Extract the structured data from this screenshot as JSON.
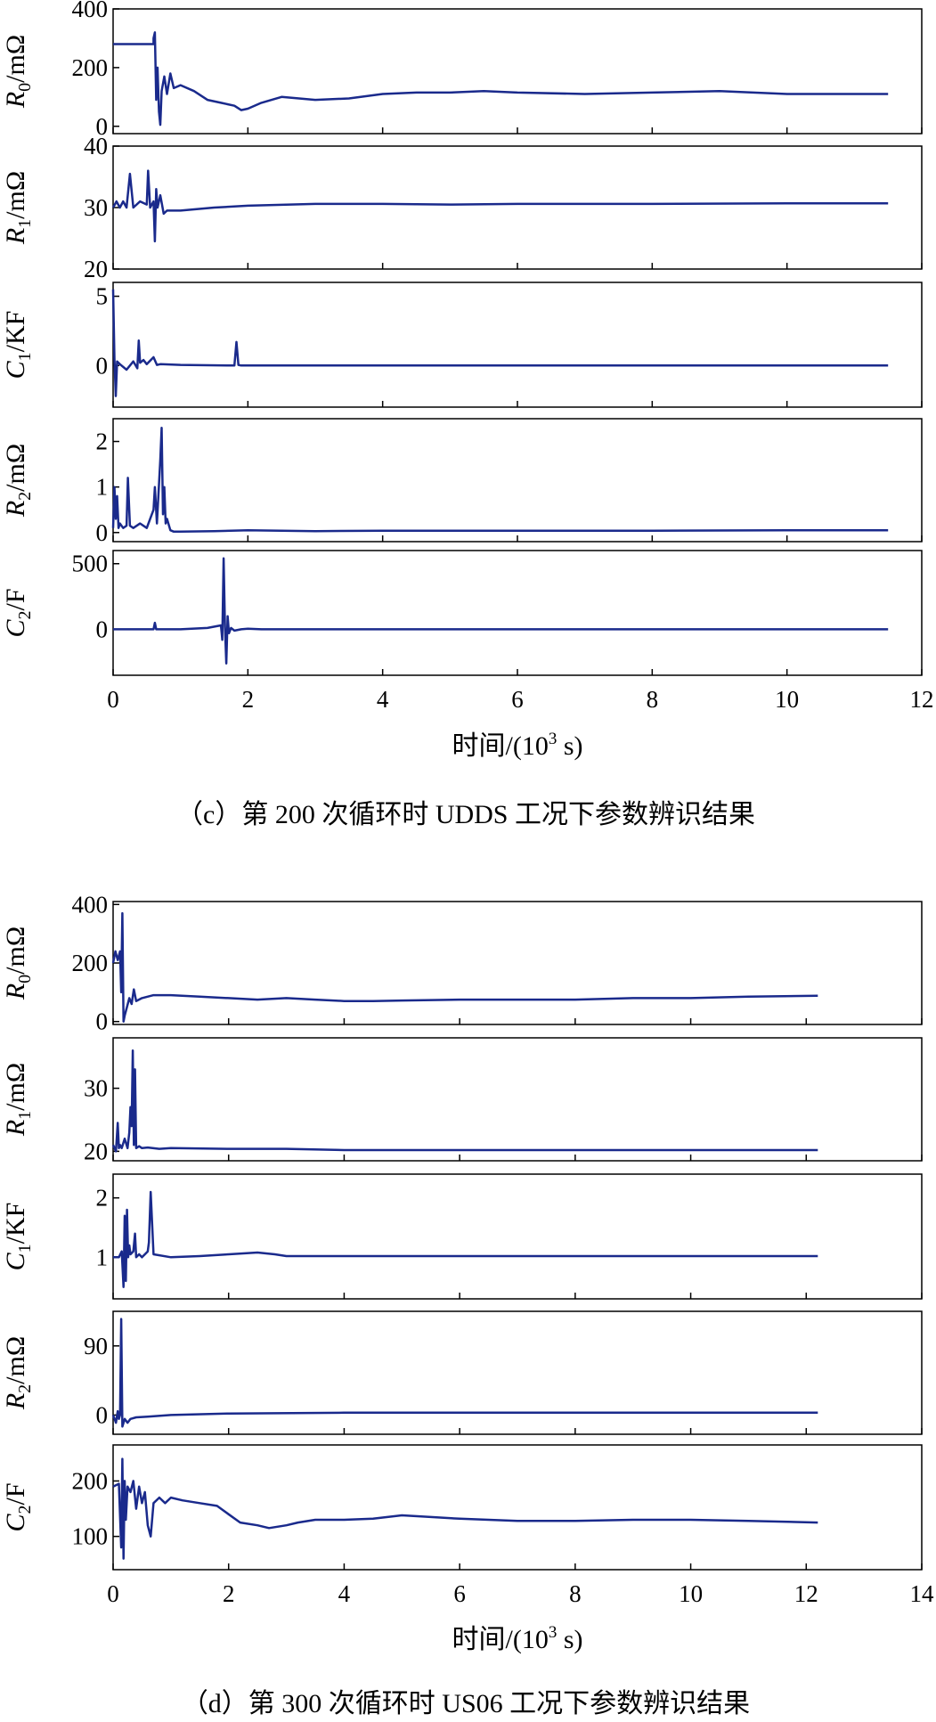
{
  "figure": {
    "series_color": "#1a2a8c",
    "panel_c_caption": "（c）第 200 次循环时 UDDS 工况下参数辨识结果",
    "panel_d_caption": "（d）第 300 次循环时 US06 工况下参数辨识结果"
  },
  "chart_data": [
    {
      "id": "c",
      "type": "line",
      "caption": "（c）第 200 次循环时 UDDS 工况下参数辨识结果",
      "xlabel": "时间/(10³ s)",
      "xlabel_main": "时间/(10",
      "xlabel_sup": "3",
      "xlabel_tail": " s)",
      "xlim": [
        0,
        12
      ],
      "xticks": [
        0,
        2,
        4,
        6,
        8,
        10,
        12
      ],
      "xtick_labels": [
        "0",
        "2",
        "4",
        "6",
        "8",
        "10",
        "12"
      ],
      "subplots": [
        {
          "ylabel": "R0/mΩ",
          "ylabel_var": "R",
          "ylabel_sub": "0",
          "ylabel_unit": "/mΩ",
          "ylim": [
            -25,
            400
          ],
          "yticks": [
            0,
            200,
            400
          ],
          "ytick_labels": [
            "0",
            "200",
            "400"
          ],
          "series": {
            "name": "R0",
            "x": [
              0,
              0.6,
              0.6,
              0.62,
              0.64,
              0.66,
              0.68,
              0.7,
              0.72,
              0.76,
              0.8,
              0.85,
              0.9,
              1.0,
              1.2,
              1.4,
              1.6,
              1.8,
              1.9,
              2.0,
              2.2,
              2.5,
              3.0,
              3.5,
              4.0,
              4.5,
              5.0,
              5.5,
              6.0,
              7.0,
              8.0,
              9.0,
              10.0,
              11.0,
              11.5
            ],
            "y": [
              280,
              280,
              300,
              320,
              90,
              200,
              50,
              5,
              120,
              170,
              110,
              180,
              130,
              140,
              120,
              90,
              80,
              70,
              55,
              60,
              80,
              100,
              90,
              95,
              110,
              115,
              115,
              120,
              115,
              110,
              115,
              120,
              110,
              110,
              110
            ]
          }
        },
        {
          "ylabel": "R1/mΩ",
          "ylabel_var": "R",
          "ylabel_sub": "1",
          "ylabel_unit": "/mΩ",
          "ylim": [
            20,
            40
          ],
          "yticks": [
            20,
            30,
            40
          ],
          "ytick_labels": [
            "20",
            "30",
            "40"
          ],
          "series": {
            "name": "R1",
            "x": [
              0,
              0.05,
              0.1,
              0.15,
              0.2,
              0.25,
              0.3,
              0.4,
              0.5,
              0.52,
              0.55,
              0.6,
              0.62,
              0.64,
              0.66,
              0.7,
              0.75,
              0.8,
              1.0,
              1.5,
              2.0,
              3.0,
              4.0,
              5.0,
              6.0,
              8.0,
              10.0,
              11.5
            ],
            "y": [
              30,
              31,
              30,
              31,
              30,
              35.5,
              30,
              31,
              30.5,
              36,
              30,
              31,
              24.5,
              33,
              30,
              32,
              29,
              29.5,
              29.5,
              30,
              30.3,
              30.6,
              30.6,
              30.5,
              30.6,
              30.6,
              30.7,
              30.7
            ]
          }
        },
        {
          "ylabel": "C1/KF",
          "ylabel_var": "C",
          "ylabel_sub": "1",
          "ylabel_unit": "/KF",
          "ylim": [
            -3,
            6
          ],
          "yticks": [
            0,
            5
          ],
          "ytick_labels": [
            "0",
            "5"
          ],
          "series": {
            "name": "C1",
            "x": [
              0,
              0.02,
              0.04,
              0.06,
              0.1,
              0.2,
              0.3,
              0.36,
              0.38,
              0.4,
              0.45,
              0.5,
              0.6,
              0.65,
              0.7,
              1.0,
              1.8,
              1.83,
              1.86,
              1.9,
              2.0,
              4.0,
              6.0,
              8.0,
              10.0,
              11.5
            ],
            "y": [
              5.5,
              0.5,
              -2.2,
              0.3,
              0.1,
              -0.3,
              0.3,
              -0.2,
              1.8,
              0.2,
              0.4,
              0.1,
              0.6,
              0.05,
              0.1,
              0.05,
              0,
              1.7,
              0.05,
              0,
              0,
              0,
              0,
              0,
              0,
              0
            ]
          }
        },
        {
          "ylabel": "R2/mΩ",
          "ylabel_var": "R",
          "ylabel_sub": "2",
          "ylabel_unit": "/mΩ",
          "ylim": [
            -0.2,
            2.5
          ],
          "yticks": [
            0,
            1,
            2
          ],
          "ytick_labels": [
            "0",
            "1",
            "2"
          ],
          "series": {
            "name": "R2",
            "x": [
              0,
              0.02,
              0.04,
              0.06,
              0.08,
              0.1,
              0.15,
              0.2,
              0.22,
              0.25,
              0.3,
              0.4,
              0.5,
              0.55,
              0.6,
              0.62,
              0.65,
              0.7,
              0.72,
              0.74,
              0.76,
              0.78,
              0.8,
              0.85,
              0.9,
              1.0,
              1.5,
              2.0,
              3.0,
              4.0,
              6.0,
              8.0,
              10.0,
              11.5
            ],
            "y": [
              0.1,
              1.0,
              0.3,
              0.8,
              0.1,
              0.2,
              0.1,
              0.15,
              1.2,
              0.15,
              0.1,
              0.2,
              0.1,
              0.3,
              0.5,
              1.0,
              0.2,
              1.6,
              2.3,
              0.4,
              1.0,
              0.2,
              0.3,
              0.05,
              0.02,
              0.02,
              0.03,
              0.05,
              0.03,
              0.04,
              0.04,
              0.04,
              0.05,
              0.05
            ]
          }
        },
        {
          "ylabel": "C2/F",
          "ylabel_var": "C",
          "ylabel_sub": "2",
          "ylabel_unit": "/F",
          "ylim": [
            -350,
            600
          ],
          "yticks": [
            0,
            500
          ],
          "ytick_labels": [
            "0",
            "500"
          ],
          "series": {
            "name": "C2",
            "x": [
              0,
              0.6,
              0.62,
              0.64,
              0.66,
              1.0,
              1.4,
              1.6,
              1.62,
              1.64,
              1.66,
              1.68,
              1.7,
              1.72,
              1.75,
              1.8,
              1.9,
              2.0,
              2.2,
              4.0,
              6.0,
              8.0,
              10.0,
              11.5
            ],
            "y": [
              0,
              0,
              50,
              0,
              0,
              0,
              10,
              30,
              -80,
              540,
              20,
              -260,
              100,
              -30,
              10,
              -10,
              0,
              5,
              0,
              0,
              0,
              0,
              0,
              0
            ]
          }
        }
      ]
    },
    {
      "id": "d",
      "type": "line",
      "caption": "（d）第 300 次循环时 US06 工况下参数辨识结果",
      "xlabel": "时间/(10³ s)",
      "xlabel_main": "时间/(10",
      "xlabel_sup": "3",
      "xlabel_tail": " s)",
      "xlim": [
        0,
        14
      ],
      "xticks": [
        0,
        2,
        4,
        6,
        8,
        10,
        12,
        14
      ],
      "xtick_labels": [
        "0",
        "2",
        "4",
        "6",
        "8",
        "10",
        "12",
        "14"
      ],
      "subplots": [
        {
          "ylabel": "R0/mΩ",
          "ylabel_var": "R",
          "ylabel_sub": "0",
          "ylabel_unit": "/mΩ",
          "ylim": [
            -10,
            410
          ],
          "yticks": [
            0,
            200,
            400
          ],
          "ytick_labels": [
            "0",
            "200",
            "400"
          ],
          "series": {
            "name": "R0",
            "x": [
              0,
              0.04,
              0.08,
              0.12,
              0.14,
              0.16,
              0.18,
              0.2,
              0.24,
              0.28,
              0.32,
              0.36,
              0.4,
              0.5,
              0.7,
              1.0,
              1.5,
              2.0,
              2.5,
              3.0,
              3.5,
              4.0,
              4.5,
              5.0,
              6.0,
              7.0,
              8.0,
              9.0,
              10.0,
              11.0,
              12.2
            ],
            "y": [
              200,
              240,
              210,
              240,
              100,
              370,
              0,
              20,
              50,
              80,
              60,
              110,
              70,
              80,
              90,
              90,
              85,
              80,
              75,
              80,
              75,
              70,
              70,
              72,
              75,
              75,
              75,
              80,
              80,
              85,
              88
            ]
          }
        },
        {
          "ylabel": "R1/mΩ",
          "ylabel_var": "R",
          "ylabel_sub": "1",
          "ylabel_unit": "/mΩ",
          "ylim": [
            18.5,
            38
          ],
          "yticks": [
            20,
            30
          ],
          "ytick_labels": [
            "20",
            "30"
          ],
          "series": {
            "name": "R1",
            "x": [
              0,
              0.05,
              0.08,
              0.1,
              0.12,
              0.15,
              0.2,
              0.25,
              0.28,
              0.3,
              0.32,
              0.34,
              0.36,
              0.38,
              0.4,
              0.45,
              0.5,
              0.6,
              0.8,
              1.0,
              2.0,
              3.0,
              4.0,
              6.0,
              8.0,
              10.0,
              12.2
            ],
            "y": [
              21,
              20,
              24.5,
              20.5,
              21,
              20.5,
              22,
              20.5,
              23,
              27,
              24,
              36,
              21,
              33,
              20.5,
              20.8,
              20.5,
              20.6,
              20.4,
              20.5,
              20.4,
              20.4,
              20.2,
              20.2,
              20.2,
              20.2,
              20.2
            ]
          }
        },
        {
          "ylabel": "C1/KF",
          "ylabel_var": "C",
          "ylabel_sub": "1",
          "ylabel_unit": "/KF",
          "ylim": [
            0.3,
            2.4
          ],
          "yticks": [
            1,
            2
          ],
          "ytick_labels": [
            "1",
            "2"
          ],
          "series": {
            "name": "C1",
            "x": [
              0,
              0.1,
              0.15,
              0.18,
              0.2,
              0.22,
              0.24,
              0.26,
              0.28,
              0.3,
              0.35,
              0.38,
              0.4,
              0.45,
              0.5,
              0.55,
              0.6,
              0.62,
              0.65,
              0.7,
              1.0,
              1.5,
              2.0,
              2.5,
              2.8,
              3.0,
              4.0,
              6.0,
              8.0,
              10.0,
              12.2
            ],
            "y": [
              1.0,
              1.0,
              1.1,
              0.5,
              1.7,
              0.6,
              1.8,
              1.0,
              1.2,
              1.05,
              1.1,
              1.4,
              1.0,
              1.05,
              1.0,
              1.05,
              1.1,
              1.25,
              2.1,
              1.05,
              1.0,
              1.02,
              1.05,
              1.08,
              1.05,
              1.02,
              1.02,
              1.02,
              1.02,
              1.02,
              1.02
            ]
          }
        },
        {
          "ylabel": "R2/mΩ",
          "ylabel_var": "R",
          "ylabel_sub": "2",
          "ylabel_unit": "/mΩ",
          "ylim": [
            -25,
            135
          ],
          "yticks": [
            0,
            90
          ],
          "ytick_labels": [
            "0",
            "90"
          ],
          "series": {
            "name": "R2",
            "x": [
              0,
              0.05,
              0.08,
              0.1,
              0.12,
              0.14,
              0.16,
              0.18,
              0.2,
              0.25,
              0.3,
              0.4,
              0.6,
              1.0,
              2.0,
              4.0,
              6.0,
              8.0,
              10.0,
              12.2
            ],
            "y": [
              0,
              -10,
              5,
              -5,
              0,
              125,
              -15,
              -10,
              -5,
              -10,
              -5,
              -3,
              -2,
              0,
              2,
              3,
              3,
              3,
              3,
              3
            ]
          }
        },
        {
          "ylabel": "C2/F",
          "ylabel_var": "C",
          "ylabel_sub": "2",
          "ylabel_unit": "/F",
          "ylim": [
            40,
            265
          ],
          "yticks": [
            100,
            200
          ],
          "ytick_labels": [
            "100",
            "200"
          ],
          "series": {
            "name": "C2",
            "x": [
              0,
              0.1,
              0.14,
              0.16,
              0.18,
              0.2,
              0.22,
              0.25,
              0.3,
              0.35,
              0.4,
              0.45,
              0.5,
              0.55,
              0.6,
              0.65,
              0.7,
              0.8,
              0.9,
              1.0,
              1.2,
              1.5,
              1.8,
              2.0,
              2.2,
              2.5,
              2.7,
              3.0,
              3.2,
              3.5,
              4.0,
              4.5,
              5.0,
              5.5,
              6.0,
              7.0,
              8.0,
              9.0,
              10.0,
              11.0,
              12.2
            ],
            "y": [
              190,
              195,
              80,
              240,
              60,
              200,
              130,
              190,
              180,
              200,
              150,
              190,
              160,
              180,
              120,
              100,
              160,
              170,
              160,
              170,
              165,
              160,
              155,
              140,
              125,
              120,
              115,
              120,
              125,
              130,
              130,
              132,
              138,
              135,
              132,
              128,
              128,
              130,
              130,
              128,
              125
            ]
          }
        }
      ]
    }
  ]
}
